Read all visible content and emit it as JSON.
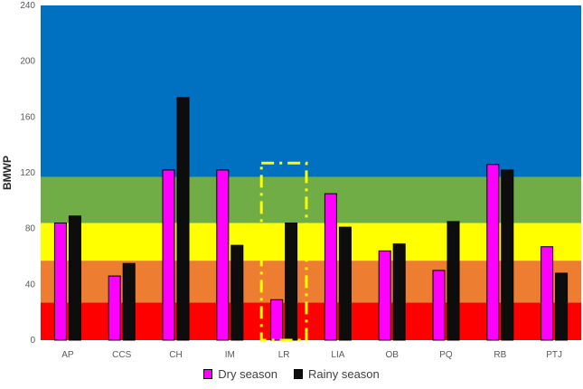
{
  "chart_data": {
    "type": "bar",
    "ylabel": "BMWP",
    "xlabel": "",
    "ylim": [
      0,
      240
    ],
    "yticks": [
      0,
      40,
      80,
      120,
      160,
      200,
      240
    ],
    "categories": [
      "AP",
      "CCS",
      "CH",
      "IM",
      "LR",
      "LIA",
      "OB",
      "PQ",
      "RB",
      "PTJ"
    ],
    "series": [
      {
        "name": "Dry season",
        "color": "#ff00ff",
        "values": [
          84,
          46,
          122,
          122,
          29,
          105,
          64,
          50,
          126,
          67
        ]
      },
      {
        "name": "Rainy season",
        "color": "#0d0d0d",
        "values": [
          89,
          55,
          174,
          68,
          84,
          81,
          69,
          85,
          122,
          48
        ]
      }
    ],
    "quality_bands": [
      {
        "from": 0,
        "to": 27,
        "color": "#ff0000"
      },
      {
        "from": 27,
        "to": 57,
        "color": "#ed7d31"
      },
      {
        "from": 57,
        "to": 84,
        "color": "#ffff00"
      },
      {
        "from": 84,
        "to": 117,
        "color": "#70ad47"
      },
      {
        "from": 117,
        "to": 240,
        "color": "#0070c0"
      }
    ],
    "highlight": {
      "category": "LR",
      "y_top": 127,
      "color": "#ffff00"
    },
    "legend_position": "bottom",
    "grid": false
  }
}
